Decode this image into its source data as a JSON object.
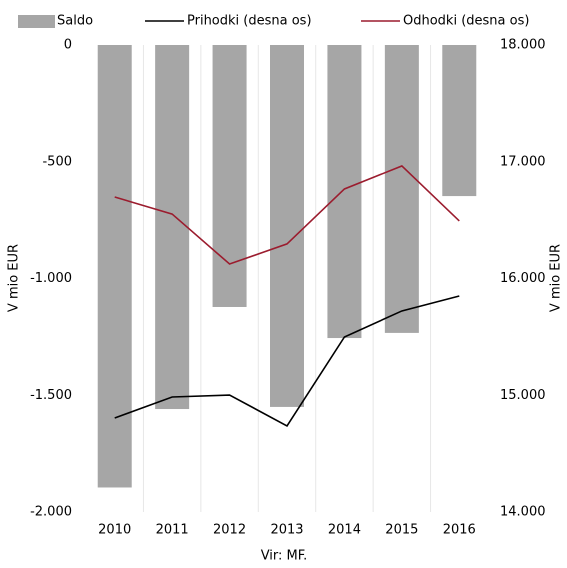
{
  "chart_data": {
    "type": "bar_line",
    "categories": [
      "2010",
      "2011",
      "2012",
      "2013",
      "2014",
      "2015",
      "2016"
    ],
    "series": [
      {
        "name": "Saldo",
        "color": "#a6a6a6",
        "values": [
          -1895,
          -1559,
          -1122,
          -1550,
          -1255,
          -1233,
          -647
        ]
      },
      {
        "name": "Prihodki (desna os)",
        "color": "#000000",
        "axis": "y2",
        "values": [
          14805,
          14985,
          15002,
          14737,
          15499,
          15722,
          15850
        ]
      },
      {
        "name": "Odhodki (desna os)",
        "color": "#9b1c2e",
        "axis": "y2",
        "values": [
          16698,
          16552,
          16124,
          16296,
          16767,
          16964,
          16493
        ]
      }
    ],
    "ylim": [
      -2000,
      0
    ],
    "yticks": [
      {
        "value": 0,
        "label": "0"
      },
      -500,
      {
        "value": -1000,
        "label": "-1.000"
      },
      {
        "value": -1500,
        "label": "-1.500"
      },
      {
        "value": -2000,
        "label": "-2.000"
      }
    ],
    "y2lim": [
      14000,
      18000
    ],
    "y2ticks": [
      {
        "value": 14000,
        "label": "14.000"
      },
      {
        "value": 15000,
        "label": "15.000"
      },
      {
        "value": 16000,
        "label": "16.000"
      },
      {
        "value": 17000,
        "label": "17.000"
      },
      {
        "value": 18000,
        "label": "18.000"
      }
    ],
    "ylabel": "V mio EUR",
    "y2label": "V mio EUR",
    "note": "Vir: MF."
  }
}
